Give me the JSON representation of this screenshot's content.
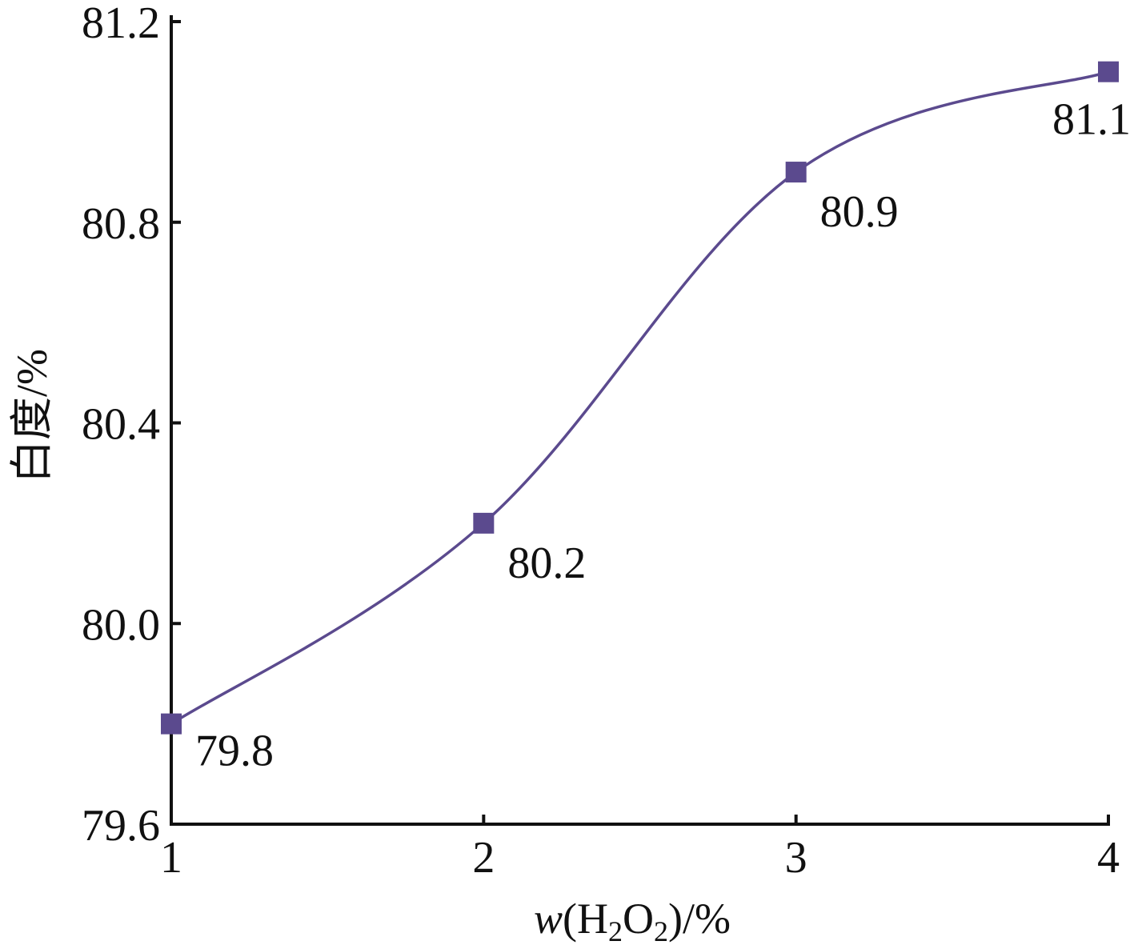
{
  "chart_data": {
    "type": "line",
    "title": "",
    "xlabel": "w(H2O2)/%",
    "xlabel_parts": {
      "var": "w",
      "open": "(H",
      "sub1": "2",
      "mid": "O",
      "sub2": "2",
      "close": ")/%"
    },
    "ylabel": "白度/%",
    "x": [
      1,
      2,
      3,
      4
    ],
    "xlim": [
      1,
      4
    ],
    "ylim": [
      79.6,
      81.2
    ],
    "x_ticks": [
      1,
      2,
      3,
      4
    ],
    "x_tick_labels": [
      "1",
      "2",
      "3",
      "4"
    ],
    "y_ticks": [
      79.6,
      80.0,
      80.4,
      80.8,
      81.2
    ],
    "y_tick_labels": [
      "79.6",
      "80.0",
      "80.4",
      "80.8",
      "81.2"
    ],
    "series": [
      {
        "values": [
          79.8,
          80.2,
          80.9,
          81.1
        ],
        "data_labels": [
          "79.8",
          "80.2",
          "80.9",
          "81.1"
        ],
        "color": "#5b4a8e",
        "marker": "square",
        "smooth": true
      }
    ],
    "grid": false,
    "legend": "none"
  }
}
